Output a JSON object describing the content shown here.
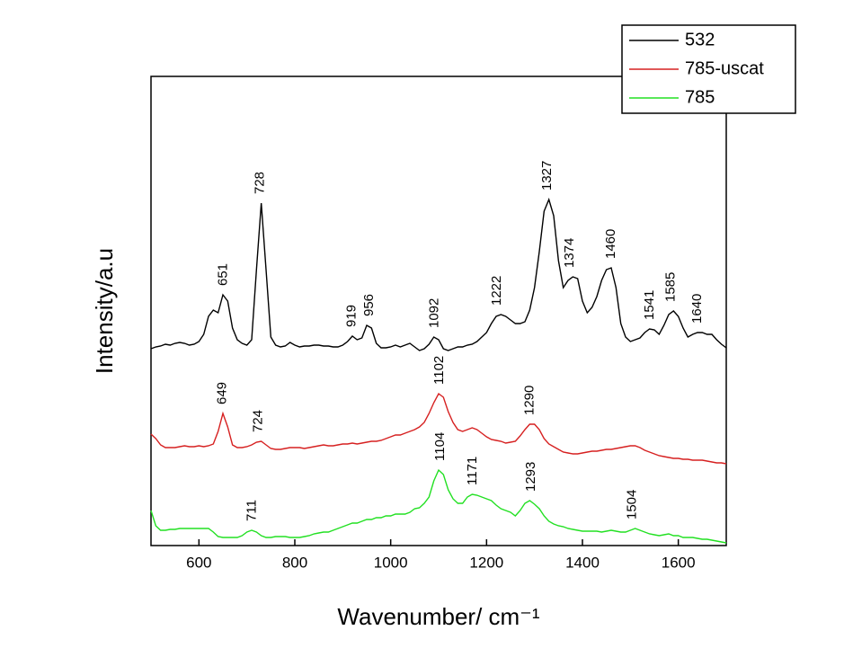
{
  "chart_data": {
    "type": "line",
    "xlabel": "Wavenumber/ cm⁻¹",
    "ylabel": "Intensity/a.u",
    "xlim": [
      500,
      1700
    ],
    "xticks": [
      600,
      800,
      1000,
      1200,
      1400,
      1600
    ],
    "ylim": [
      0,
      522
    ],
    "legend": "upper right",
    "x": [
      500,
      510,
      520,
      530,
      540,
      550,
      560,
      570,
      580,
      590,
      600,
      610,
      620,
      630,
      640,
      650,
      660,
      670,
      680,
      690,
      700,
      710,
      720,
      730,
      740,
      750,
      760,
      770,
      780,
      790,
      800,
      810,
      820,
      830,
      840,
      850,
      860,
      870,
      880,
      890,
      900,
      910,
      920,
      930,
      940,
      950,
      960,
      970,
      980,
      990,
      1000,
      1010,
      1020,
      1030,
      1040,
      1050,
      1060,
      1070,
      1080,
      1090,
      1100,
      1110,
      1120,
      1130,
      1140,
      1150,
      1160,
      1170,
      1180,
      1190,
      1200,
      1210,
      1220,
      1230,
      1240,
      1250,
      1260,
      1270,
      1280,
      1290,
      1300,
      1310,
      1320,
      1330,
      1340,
      1350,
      1360,
      1370,
      1380,
      1390,
      1400,
      1410,
      1420,
      1430,
      1440,
      1450,
      1460,
      1470,
      1480,
      1490,
      1500,
      1510,
      1520,
      1530,
      1540,
      1550,
      1560,
      1570,
      1580,
      1590,
      1600,
      1610,
      1620,
      1630,
      1640,
      1650,
      1660,
      1670,
      1680,
      1690,
      1700
    ],
    "series": [
      {
        "name": "532",
        "color": "#000000",
        "values": [
          219,
          221,
          222,
          224,
          223,
          225,
          226,
          225,
          223,
          224,
          227,
          235,
          255,
          262,
          259,
          279,
          272,
          242,
          229,
          225,
          223,
          229,
          307,
          381,
          307,
          232,
          223,
          221,
          222,
          226,
          223,
          221,
          222,
          222,
          223,
          223,
          222,
          222,
          221,
          221,
          223,
          227,
          233,
          229,
          231,
          245,
          242,
          225,
          220,
          220,
          221,
          223,
          221,
          223,
          225,
          221,
          217,
          219,
          224,
          232,
          229,
          219,
          217,
          219,
          221,
          221,
          223,
          224,
          227,
          232,
          237,
          247,
          255,
          257,
          255,
          251,
          247,
          247,
          249,
          262,
          287,
          327,
          372,
          385,
          367,
          317,
          287,
          295,
          299,
          297,
          272,
          259,
          265,
          277,
          295,
          307,
          309,
          287,
          247,
          232,
          227,
          229,
          231,
          237,
          241,
          240,
          235,
          245,
          257,
          261,
          255,
          242,
          232,
          235,
          237,
          237,
          235,
          235,
          229,
          224,
          220
        ],
        "peaks": [
          651,
          728,
          919,
          956,
          1092,
          1222,
          1327,
          1374,
          1460,
          1541,
          1585,
          1640
        ]
      },
      {
        "name": "785-uscat",
        "color": "#d62020",
        "values": [
          124,
          119,
          112,
          109,
          109,
          109,
          110,
          111,
          110,
          110,
          111,
          110,
          111,
          113,
          127,
          147,
          132,
          112,
          109,
          109,
          110,
          112,
          115,
          116,
          112,
          108,
          107,
          107,
          108,
          109,
          109,
          109,
          108,
          109,
          110,
          111,
          112,
          111,
          111,
          112,
          113,
          113,
          114,
          113,
          114,
          115,
          116,
          116,
          117,
          119,
          121,
          123,
          123,
          125,
          127,
          129,
          132,
          137,
          147,
          159,
          169,
          165,
          149,
          137,
          129,
          127,
          129,
          131,
          129,
          125,
          121,
          118,
          117,
          116,
          114,
          115,
          116,
          122,
          129,
          135,
          135,
          129,
          119,
          113,
          110,
          107,
          104,
          103,
          102,
          102,
          103,
          104,
          105,
          105,
          106,
          107,
          107,
          108,
          109,
          110,
          111,
          111,
          109,
          106,
          104,
          102,
          100,
          99,
          98,
          97,
          97,
          96,
          96,
          95,
          95,
          95,
          94,
          93,
          92,
          92,
          91
        ],
        "peaks": [
          649,
          724,
          1102,
          1290
        ]
      },
      {
        "name": "785",
        "color": "#22e022",
        "label_color": "#000000",
        "values": [
          39,
          22,
          17,
          17,
          18,
          18,
          19,
          19,
          19,
          19,
          19,
          19,
          19,
          15,
          10,
          9,
          9,
          9,
          9,
          11,
          15,
          17,
          15,
          11,
          9,
          9,
          10,
          10,
          10,
          9,
          9,
          9,
          10,
          11,
          13,
          14,
          15,
          15,
          17,
          19,
          21,
          23,
          25,
          25,
          27,
          29,
          29,
          31,
          31,
          33,
          33,
          35,
          35,
          35,
          37,
          41,
          42,
          47,
          54,
          72,
          84,
          79,
          62,
          52,
          47,
          47,
          54,
          57,
          56,
          54,
          52,
          50,
          45,
          41,
          39,
          37,
          33,
          39,
          47,
          50,
          46,
          41,
          33,
          27,
          24,
          22,
          21,
          19,
          18,
          17,
          16,
          16,
          16,
          16,
          15,
          16,
          17,
          16,
          15,
          15,
          17,
          19,
          17,
          15,
          13,
          12,
          11,
          12,
          13,
          11,
          11,
          9,
          9,
          9,
          8,
          7,
          7,
          6,
          5,
          4,
          3
        ],
        "peaks": [
          711,
          1104,
          1171,
          1293,
          1504
        ]
      }
    ]
  }
}
